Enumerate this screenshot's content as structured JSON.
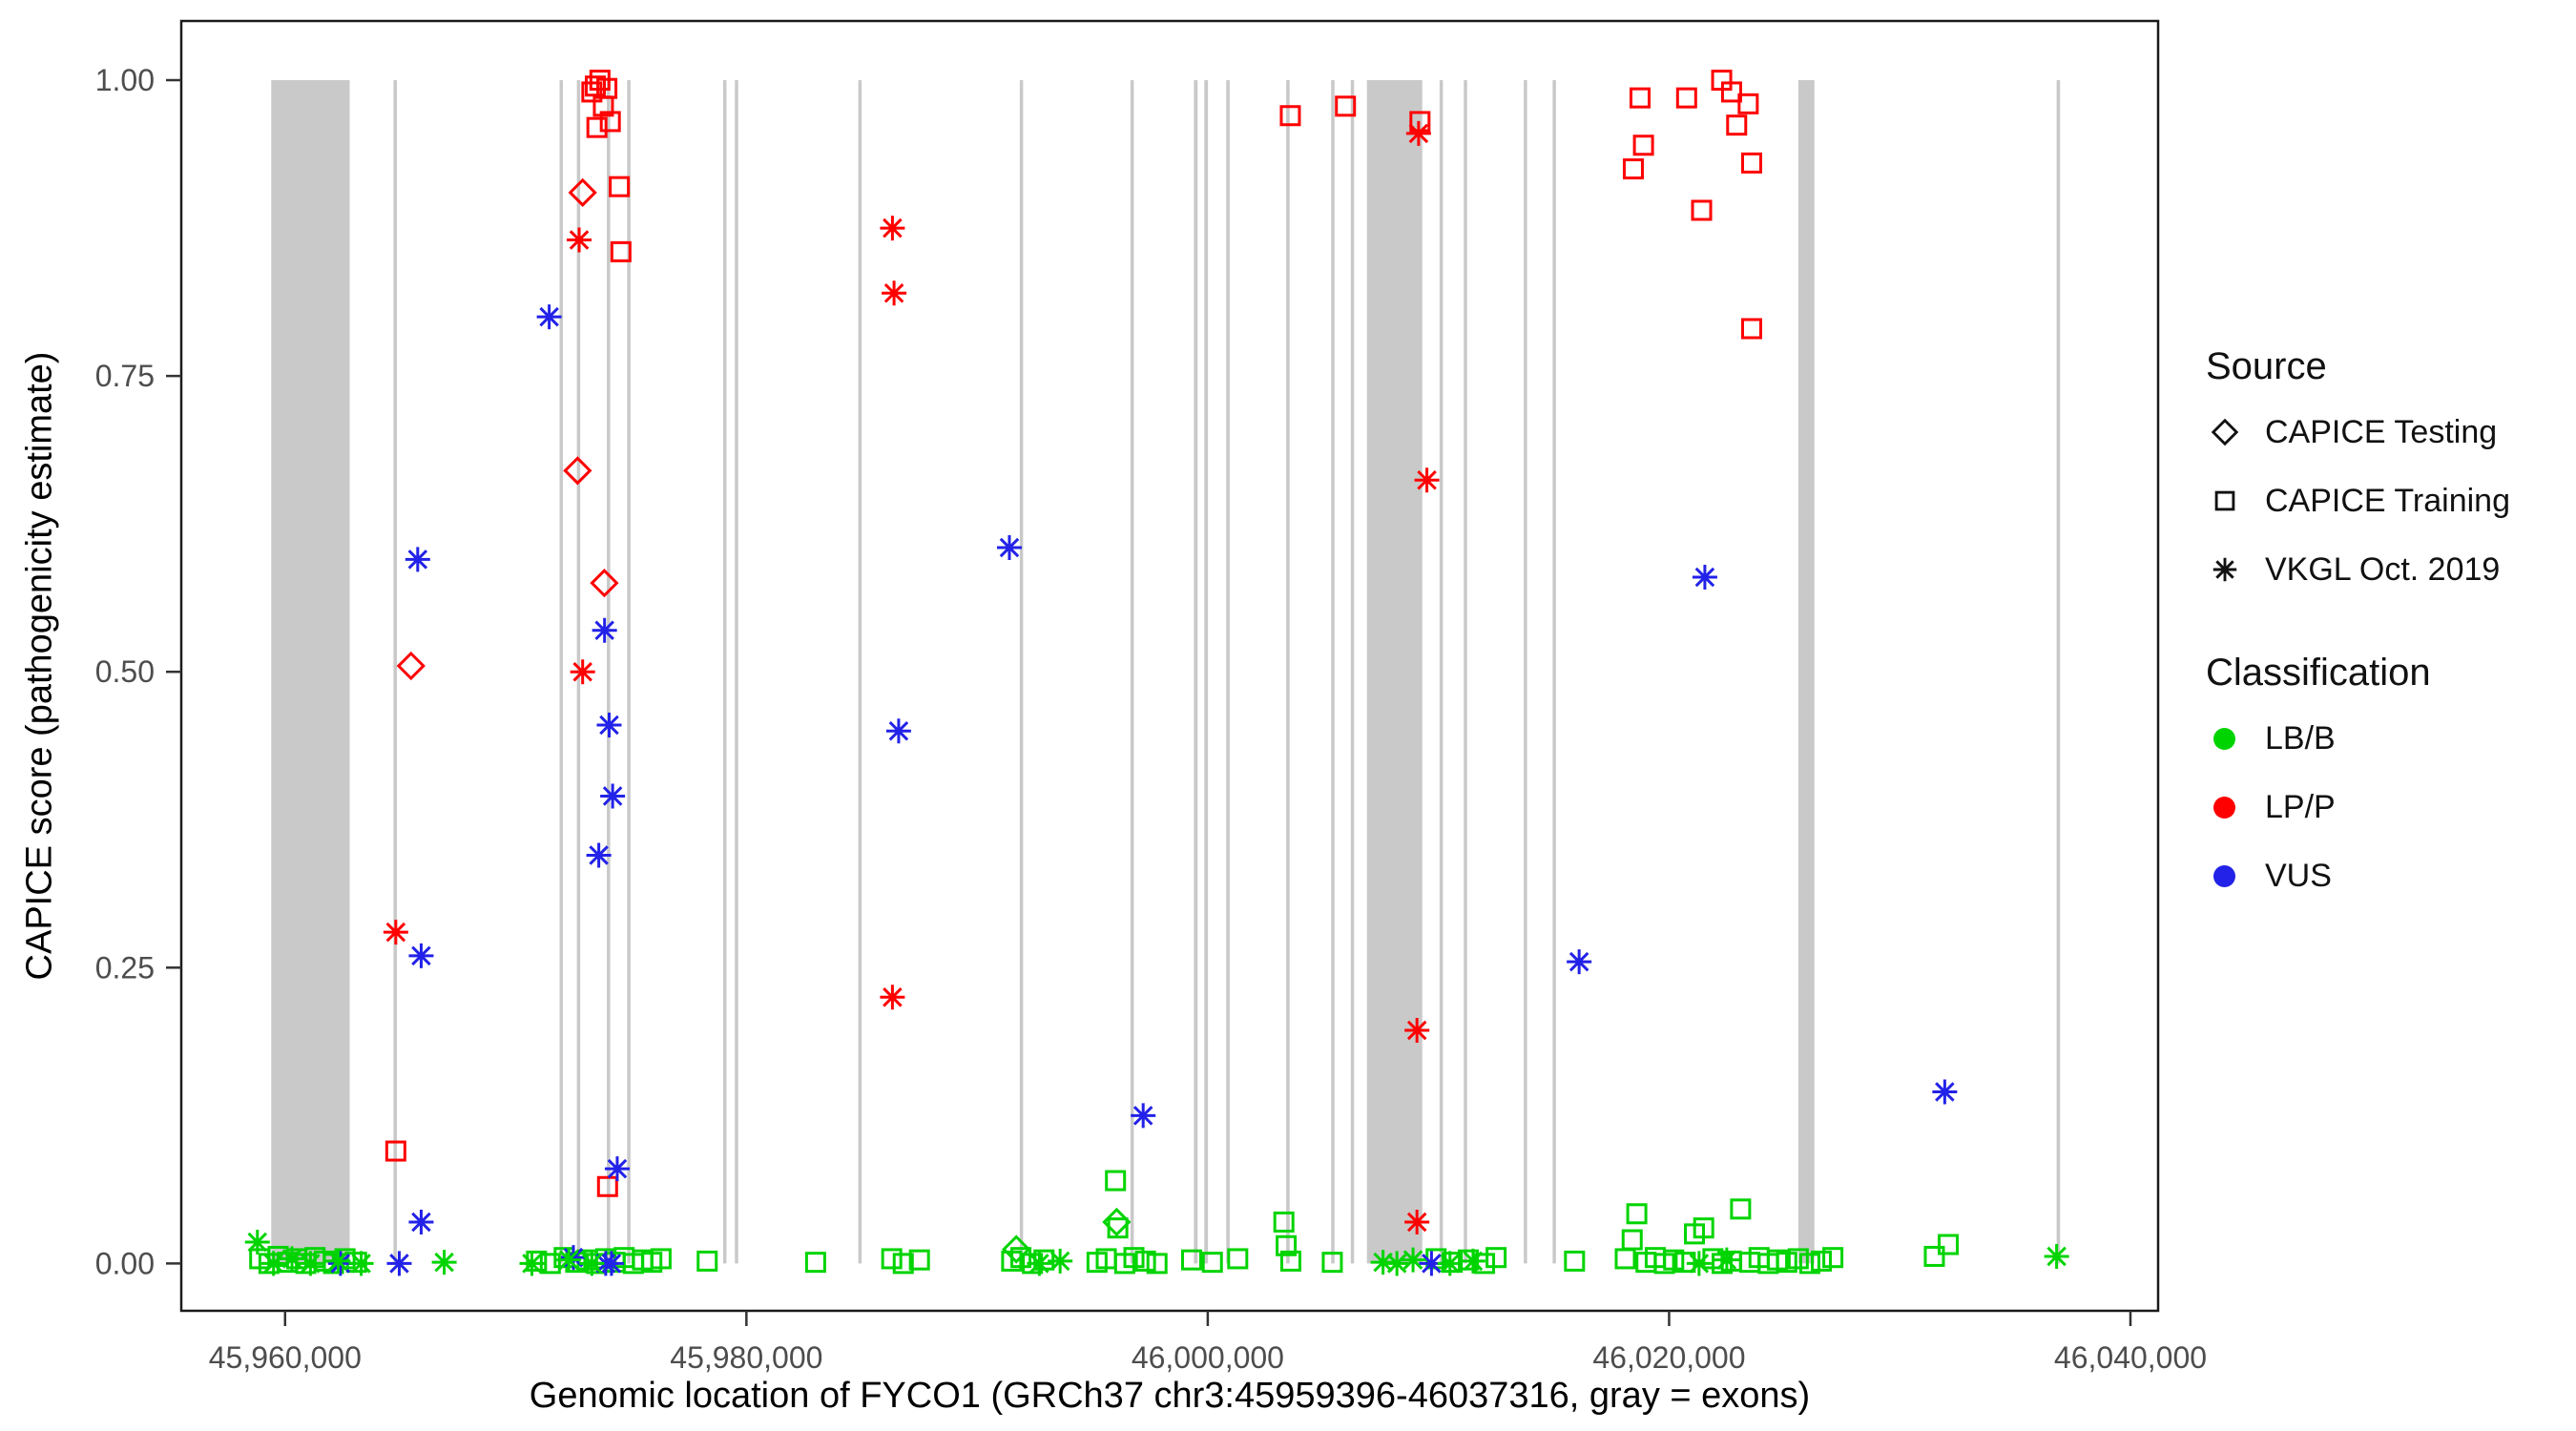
{
  "chart_data": {
    "type": "scatter",
    "title": "",
    "xlabel": "Genomic location of FYCO1 (GRCh37 chr3:45959396-46037316, gray = exons)",
    "ylabel": "CAPICE score (pathogenicity estimate)",
    "xlim": [
      45955500,
      46041200
    ],
    "ylim": [
      -0.04,
      1.05
    ],
    "x_ticks": [
      45960000,
      45980000,
      46000000,
      46020000,
      46040000
    ],
    "x_tick_labels": [
      "45,960,000",
      "45,980,000",
      "46,000,000",
      "46,020,000",
      "46,040,000"
    ],
    "y_ticks": [
      0,
      0.25,
      0.5,
      0.75,
      1.0
    ],
    "y_tick_labels": [
      "0.00",
      "0.25",
      "0.50",
      "0.75",
      "1.00"
    ],
    "grid": false,
    "legend_position": "right",
    "exon_color": "#c9c9c9",
    "exon_note": "gray = exons",
    "exons": [
      [
        45959400,
        45962800
      ],
      [
        45964700,
        45964850
      ],
      [
        45971900,
        45972040
      ],
      [
        45972650,
        45972780
      ],
      [
        45973950,
        45974080
      ],
      [
        45974830,
        45974970
      ],
      [
        45978990,
        45979130
      ],
      [
        45979500,
        45979640
      ],
      [
        45984850,
        45984990
      ],
      [
        45991850,
        45991990
      ],
      [
        45996650,
        45996790
      ],
      [
        45999400,
        45999560
      ],
      [
        45999850,
        46000010
      ],
      [
        46000800,
        46000950
      ],
      [
        46003400,
        46003550
      ],
      [
        46005350,
        46005490
      ],
      [
        46006200,
        46006340
      ],
      [
        46006900,
        46009300
      ],
      [
        46010050,
        46010190
      ],
      [
        46011100,
        46011240
      ],
      [
        46013700,
        46013840
      ],
      [
        46014950,
        46015090
      ],
      [
        46025600,
        46026300
      ],
      [
        46036800,
        46036950
      ]
    ],
    "series": [
      {
        "source": "CAPICE Testing",
        "classification": "LP/P",
        "marker": "diamond",
        "color": "#ff0000",
        "points": [
          [
            45965460,
            0.505
          ],
          [
            45972900,
            0.905
          ],
          [
            45972680,
            0.67
          ],
          [
            45973840,
            0.575
          ]
        ]
      },
      {
        "source": "CAPICE Testing",
        "classification": "LB/B",
        "marker": "diamond",
        "color": "#00d400",
        "points": [
          [
            45991700,
            0.012
          ],
          [
            45996050,
            0.035
          ]
        ]
      },
      {
        "source": "CAPICE Training",
        "classification": "LP/P",
        "marker": "square",
        "color": "#ff0000",
        "points": [
          [
            45964800,
            0.095
          ],
          [
            45973980,
            0.065
          ],
          [
            45973300,
            0.99
          ],
          [
            45973450,
            0.995
          ],
          [
            45973520,
            0.96
          ],
          [
            45973650,
            1.0
          ],
          [
            45973800,
            0.978
          ],
          [
            45973950,
            0.993
          ],
          [
            45974100,
            0.965
          ],
          [
            45974490,
            0.91
          ],
          [
            45974560,
            0.855
          ],
          [
            46003580,
            0.97
          ],
          [
            46005970,
            0.978
          ],
          [
            46009200,
            0.965
          ],
          [
            46018450,
            0.925
          ],
          [
            46018740,
            0.985
          ],
          [
            46018890,
            0.945
          ],
          [
            46020760,
            0.985
          ],
          [
            46021410,
            0.89
          ],
          [
            46022280,
            1.0
          ],
          [
            46022710,
            0.99
          ],
          [
            46022930,
            0.962
          ],
          [
            46023430,
            0.98
          ],
          [
            46023580,
            0.93
          ],
          [
            46023580,
            0.79
          ]
        ]
      },
      {
        "source": "CAPICE Training",
        "classification": "LB/B",
        "marker": "square",
        "color": "#00d400",
        "points": [
          [
            45958900,
            0.004
          ],
          [
            45959300,
            0.0
          ],
          [
            45959700,
            0.006
          ],
          [
            45960100,
            0.001
          ],
          [
            45960500,
            0.004
          ],
          [
            45960900,
            0.0
          ],
          [
            45961300,
            0.005
          ],
          [
            45961700,
            0.002
          ],
          [
            45962100,
            0.0
          ],
          [
            45962600,
            0.004
          ],
          [
            45963100,
            0.001
          ],
          [
            45970900,
            0.002
          ],
          [
            45971500,
            0.0
          ],
          [
            45972100,
            0.005
          ],
          [
            45972600,
            0.001
          ],
          [
            45973100,
            0.003
          ],
          [
            45973500,
            0.0
          ],
          [
            45973900,
            0.004
          ],
          [
            45974300,
            0.001
          ],
          [
            45974700,
            0.005
          ],
          [
            45975100,
            0.0
          ],
          [
            45975500,
            0.003
          ],
          [
            45975900,
            0.001
          ],
          [
            45976300,
            0.004
          ],
          [
            45978300,
            0.002
          ],
          [
            45983000,
            0.001
          ],
          [
            45986300,
            0.004
          ],
          [
            45986800,
            0.0
          ],
          [
            45987500,
            0.003
          ],
          [
            45991500,
            0.002
          ],
          [
            45991900,
            0.005
          ],
          [
            45992400,
            0.0
          ],
          [
            45992900,
            0.003
          ],
          [
            45995200,
            0.001
          ],
          [
            45995600,
            0.004
          ],
          [
            45996000,
            0.07
          ],
          [
            45996100,
            0.03
          ],
          [
            45996400,
            0.0
          ],
          [
            45996800,
            0.005
          ],
          [
            45997300,
            0.002
          ],
          [
            45997800,
            0.0
          ],
          [
            45999300,
            0.003
          ],
          [
            46000200,
            0.001
          ],
          [
            46001300,
            0.004
          ],
          [
            46003300,
            0.035
          ],
          [
            46003400,
            0.015
          ],
          [
            46003600,
            0.002
          ],
          [
            46005400,
            0.001
          ],
          [
            46009900,
            0.004
          ],
          [
            46010600,
            0.001
          ],
          [
            46011300,
            0.003
          ],
          [
            46012000,
            0.0
          ],
          [
            46012500,
            0.005
          ],
          [
            46015900,
            0.002
          ],
          [
            46018100,
            0.004
          ],
          [
            46018400,
            0.02
          ],
          [
            46018600,
            0.042
          ],
          [
            46019000,
            0.001
          ],
          [
            46019400,
            0.005
          ],
          [
            46019800,
            0.0
          ],
          [
            46020200,
            0.003
          ],
          [
            46020700,
            0.001
          ],
          [
            46021100,
            0.025
          ],
          [
            46021500,
            0.03
          ],
          [
            46021900,
            0.004
          ],
          [
            46022300,
            0.0
          ],
          [
            46022700,
            0.002
          ],
          [
            46023100,
            0.046
          ],
          [
            46023500,
            0.001
          ],
          [
            46023900,
            0.005
          ],
          [
            46024300,
            0.0
          ],
          [
            46024700,
            0.003
          ],
          [
            46025100,
            0.001
          ],
          [
            46025600,
            0.004
          ],
          [
            46026100,
            0.0
          ],
          [
            46026600,
            0.002
          ],
          [
            46027100,
            0.005
          ],
          [
            46031500,
            0.006
          ],
          [
            46032100,
            0.016
          ]
        ]
      },
      {
        "source": "VKGL Oct. 2019",
        "classification": "LP/P",
        "marker": "asterisk",
        "color": "#ff0000",
        "points": [
          [
            45964800,
            0.28
          ],
          [
            45972750,
            0.865
          ],
          [
            45972900,
            0.5
          ],
          [
            45986330,
            0.875
          ],
          [
            45986400,
            0.82
          ],
          [
            45986330,
            0.225
          ],
          [
            46009140,
            0.955
          ],
          [
            46009500,
            0.662
          ],
          [
            46009070,
            0.197
          ],
          [
            46009070,
            0.035
          ]
        ]
      },
      {
        "source": "VKGL Oct. 2019",
        "classification": "VUS",
        "marker": "asterisk",
        "color": "#2222e8",
        "points": [
          [
            45962400,
            0.0
          ],
          [
            45964950,
            0.0
          ],
          [
            45965750,
            0.595
          ],
          [
            45965900,
            0.26
          ],
          [
            45965900,
            0.035
          ],
          [
            45971450,
            0.8
          ],
          [
            45972500,
            0.005
          ],
          [
            45973600,
            0.345
          ],
          [
            45973850,
            0.535
          ],
          [
            45973900,
            0.0
          ],
          [
            45974050,
            0.455
          ],
          [
            45974150,
            0.0
          ],
          [
            45974200,
            0.395
          ],
          [
            45974400,
            0.08
          ],
          [
            45986600,
            0.45
          ],
          [
            45991400,
            0.605
          ],
          [
            45997200,
            0.125
          ],
          [
            46009700,
            0.0
          ],
          [
            46016100,
            0.255
          ],
          [
            46021550,
            0.58
          ],
          [
            46031950,
            0.145
          ]
        ]
      },
      {
        "source": "VKGL Oct. 2019",
        "classification": "LB/B",
        "marker": "asterisk",
        "color": "#00d400",
        "points": [
          [
            45958800,
            0.018
          ],
          [
            45959500,
            0.0
          ],
          [
            45960300,
            0.004
          ],
          [
            45961100,
            0.0
          ],
          [
            45962300,
            0.002
          ],
          [
            45963300,
            0.0
          ],
          [
            45966900,
            0.001
          ],
          [
            45970700,
            0.0
          ],
          [
            45972300,
            0.003
          ],
          [
            45973300,
            0.0
          ],
          [
            45992700,
            0.0
          ],
          [
            45993600,
            0.002
          ],
          [
            46007600,
            0.001
          ],
          [
            46008200,
            0.0
          ],
          [
            46008900,
            0.003
          ],
          [
            46010500,
            0.0
          ],
          [
            46011500,
            0.002
          ],
          [
            46021300,
            0.0
          ],
          [
            46022500,
            0.003
          ],
          [
            46036800,
            0.006
          ]
        ]
      }
    ]
  },
  "legend": {
    "source": {
      "title": "Source",
      "items": [
        {
          "label": "CAPICE Testing",
          "marker": "diamond"
        },
        {
          "label": "CAPICE Training",
          "marker": "square"
        },
        {
          "label": "VKGL Oct. 2019",
          "marker": "asterisk"
        }
      ]
    },
    "classification": {
      "title": "Classification",
      "items": [
        {
          "label": "LB/B",
          "color": "#00d400"
        },
        {
          "label": "LP/P",
          "color": "#ff0000"
        },
        {
          "label": "VUS",
          "color": "#2222e8"
        }
      ]
    }
  }
}
